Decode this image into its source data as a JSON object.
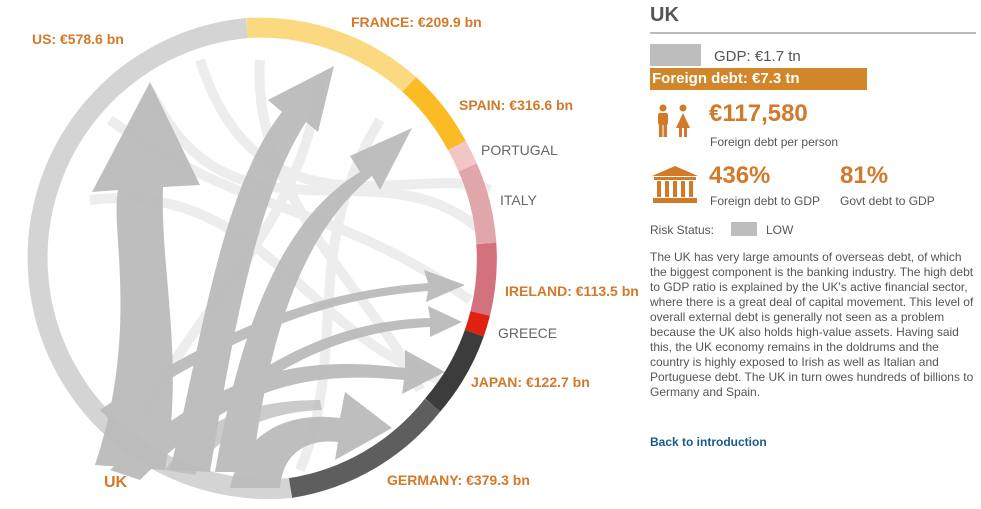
{
  "diagram": {
    "labels": {
      "us": "US: €578.6 bn",
      "france": "FRANCE: €209.9 bn",
      "spain": "SPAIN: €316.6 bn",
      "portugal": "PORTUGAL",
      "italy": "ITALY",
      "ireland": "IRELAND: €113.5 bn",
      "greece": "GREECE",
      "japan": "JAPAN: €122.7 bn",
      "germany": "GERMANY: €379.3 bn",
      "uk": "UK"
    },
    "colors": {
      "uk_flows": "#bcbcbc",
      "ring_uk": "#d4d4d4",
      "france": "#fbd981",
      "spain": "#fbbb24",
      "portugal": "#f2c5c6",
      "italy": "#e0a6aa",
      "ireland": "#d3717d",
      "greece": "#e02010",
      "japan": "#3c3c3c",
      "germany": "#5e5e5e",
      "accent": "#d2792a"
    }
  },
  "panel": {
    "country": "UK",
    "gdp": "GDP: €1.7 tn",
    "foreign_debt": "Foreign debt: €7.3 tn",
    "per_person_value": "€117,580",
    "per_person_label": "Foreign debt per person",
    "ratio_value": "436%",
    "ratio_label": "Foreign debt to GDP",
    "govt_value": "81%",
    "govt_label": "Govt debt to GDP",
    "risk_label": "Risk Status:",
    "risk_value": "LOW",
    "description": "The UK has very large amounts of overseas debt, of which the biggest component is the banking industry. The high debt to GDP ratio is explained by the UK's active financial sector, where there is a great deal of capital movement. This level of overall external debt is generally not seen as a problem because the UK also holds high-value assets. Having said this, the UK economy remains in the doldrums and the country is highly exposed to Irish as well as Italian and Portuguese debt. The UK in turn owes hundreds of billions to Germany and Spain.",
    "back_link": "Back to introduction"
  }
}
